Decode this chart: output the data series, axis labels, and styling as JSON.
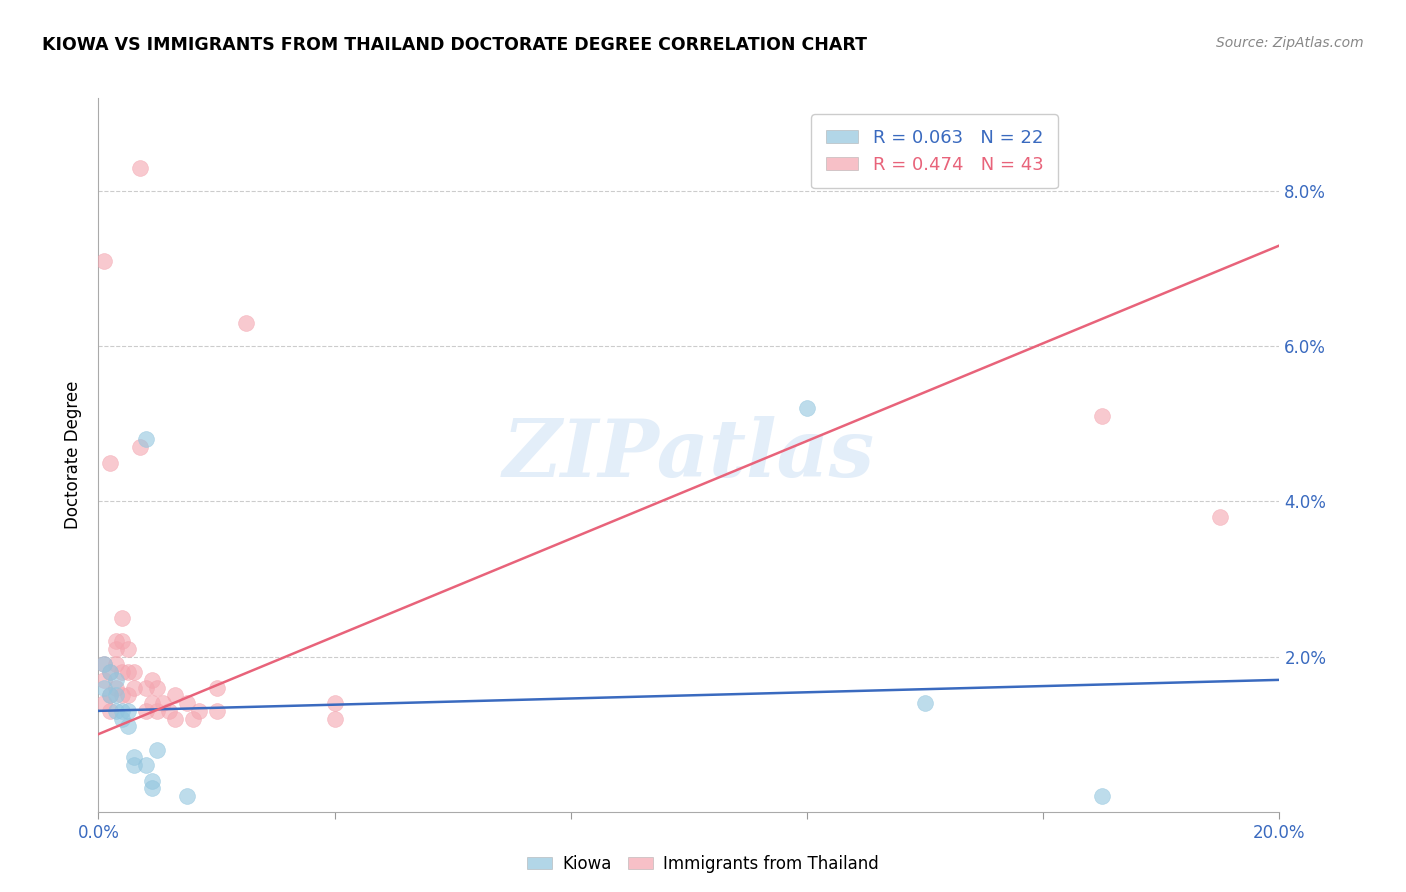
{
  "title": "KIOWA VS IMMIGRANTS FROM THAILAND DOCTORATE DEGREE CORRELATION CHART",
  "source": "Source: ZipAtlas.com",
  "ylabel": "Doctorate Degree",
  "xlim": [
    0.0,
    0.2
  ],
  "ylim": [
    0.0,
    0.092
  ],
  "yticks_right": [
    0.02,
    0.04,
    0.06,
    0.08
  ],
  "ytick_right_labels": [
    "2.0%",
    "4.0%",
    "6.0%",
    "8.0%"
  ],
  "kiowa_color": "#92c5de",
  "thailand_color": "#f4a6b0",
  "regression_blue": "#3a6abf",
  "regression_pink": "#e8637a",
  "watermark": "ZIPatlas",
  "blue_line_start": 0.013,
  "blue_line_end": 0.017,
  "pink_line_start": 0.01,
  "pink_line_end": 0.073,
  "kiowa_x": [
    0.001,
    0.001,
    0.002,
    0.002,
    0.003,
    0.003,
    0.003,
    0.004,
    0.004,
    0.005,
    0.005,
    0.006,
    0.006,
    0.008,
    0.009,
    0.009,
    0.01,
    0.015,
    0.008,
    0.14,
    0.17,
    0.12
  ],
  "kiowa_y": [
    0.019,
    0.016,
    0.018,
    0.015,
    0.017,
    0.015,
    0.013,
    0.013,
    0.012,
    0.013,
    0.011,
    0.006,
    0.007,
    0.006,
    0.004,
    0.003,
    0.008,
    0.002,
    0.048,
    0.014,
    0.002,
    0.052
  ],
  "thailand_x": [
    0.001,
    0.001,
    0.001,
    0.002,
    0.002,
    0.002,
    0.003,
    0.003,
    0.003,
    0.003,
    0.004,
    0.004,
    0.004,
    0.004,
    0.005,
    0.005,
    0.005,
    0.006,
    0.006,
    0.007,
    0.007,
    0.008,
    0.008,
    0.009,
    0.009,
    0.01,
    0.01,
    0.011,
    0.012,
    0.013,
    0.013,
    0.015,
    0.016,
    0.017,
    0.02,
    0.02,
    0.025,
    0.04,
    0.04,
    0.17,
    0.19,
    0.001,
    0.002
  ],
  "thailand_y": [
    0.019,
    0.017,
    0.014,
    0.018,
    0.015,
    0.013,
    0.022,
    0.021,
    0.019,
    0.016,
    0.025,
    0.022,
    0.018,
    0.015,
    0.021,
    0.018,
    0.015,
    0.018,
    0.016,
    0.047,
    0.083,
    0.016,
    0.013,
    0.017,
    0.014,
    0.016,
    0.013,
    0.014,
    0.013,
    0.015,
    0.012,
    0.014,
    0.012,
    0.013,
    0.016,
    0.013,
    0.063,
    0.014,
    0.012,
    0.051,
    0.038,
    0.071,
    0.045
  ]
}
